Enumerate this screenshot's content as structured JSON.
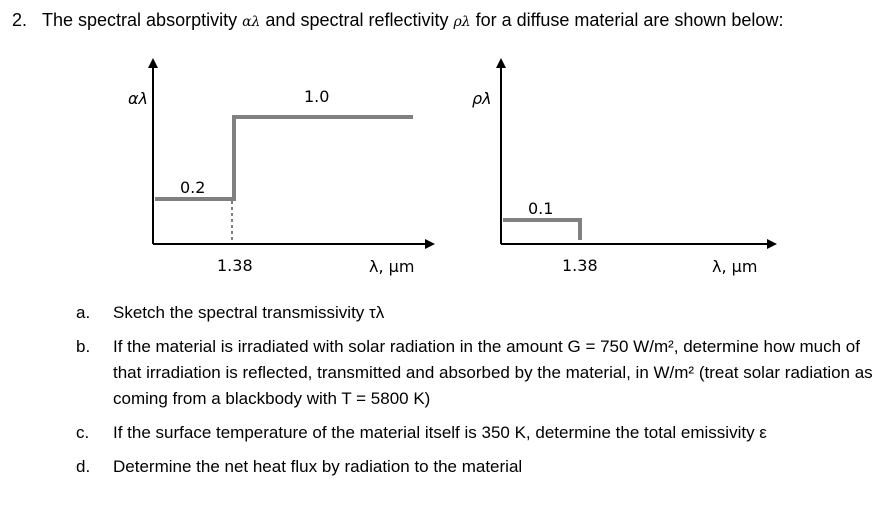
{
  "question": {
    "number": "2.",
    "prompt_before": "The spectral absorptivity ",
    "alpha_symbol": "αλ",
    "prompt_mid": " and spectral reflectivity ",
    "rho_symbol": "ρλ",
    "prompt_after": " for a diffuse material are shown below:"
  },
  "figures": {
    "absorptivity": {
      "y_label": "αλ",
      "x_label": "λ, μm",
      "step_x_label": "1.38",
      "low_value_label": "0.2",
      "high_value_label": "1.0"
    },
    "reflectivity": {
      "y_label": "ρλ",
      "x_label": "λ, μm",
      "step_x_label": "1.38",
      "low_value_label": "0.1"
    },
    "line_color": "#808080"
  },
  "parts": [
    {
      "letter": "a.",
      "text": "Sketch the spectral transmissivity τλ"
    },
    {
      "letter": "b.",
      "text": "If the material is irradiated with solar radiation in the amount G = 750 W/m², determine how much of that irradiation is reflected, transmitted and absorbed by the material, in W/m² (treat solar radiation as coming from a blackbody with T = 5800 K)"
    },
    {
      "letter": "c.",
      "text": "If the surface temperature of the material itself is 350 K, determine the total emissivity ε"
    },
    {
      "letter": "d.",
      "text": "Determine the net heat flux by radiation to the material"
    }
  ]
}
